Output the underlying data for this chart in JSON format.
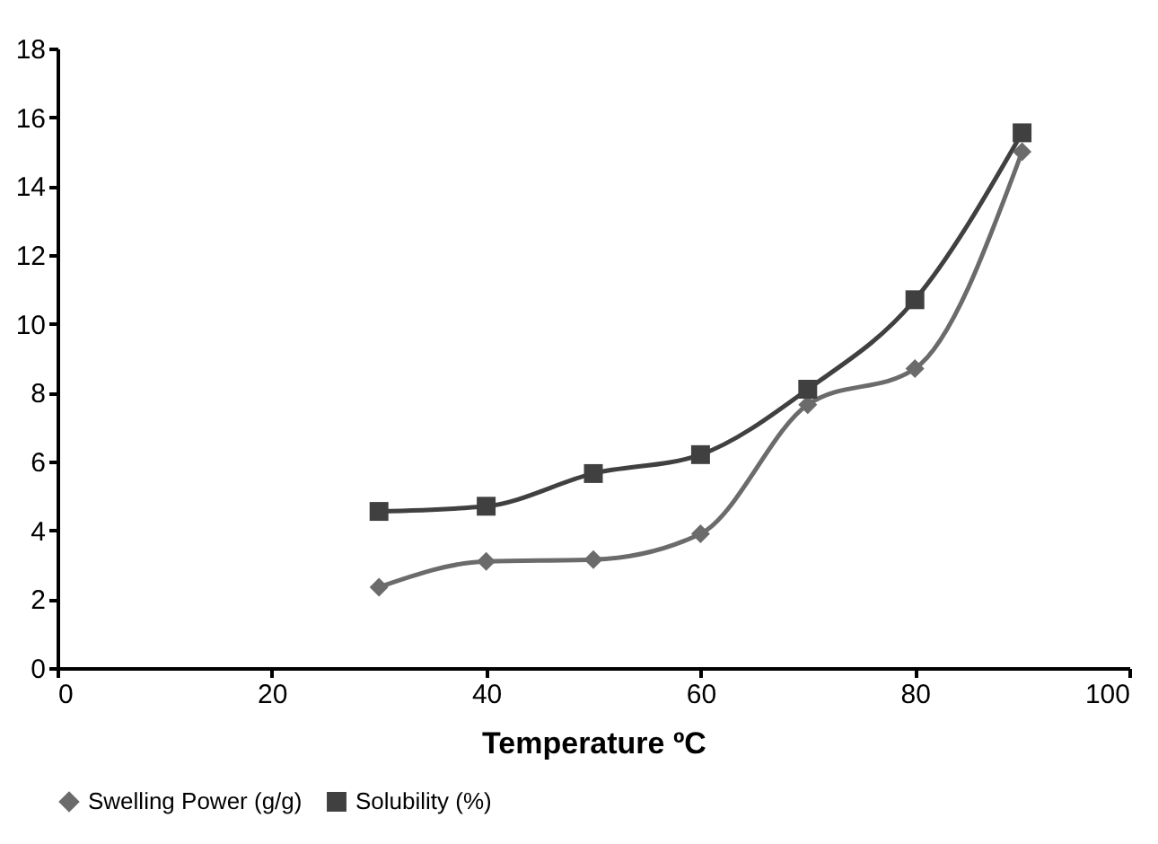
{
  "chart_data": {
    "type": "line",
    "xlabel": "Temperature ºC",
    "x": [
      30,
      40,
      50,
      60,
      70,
      80,
      90
    ],
    "series": [
      {
        "name": "Swelling Power (g/g)",
        "color": "#6b6b6b",
        "marker": "diamond",
        "values": [
          2.35,
          3.1,
          3.15,
          3.9,
          7.65,
          8.7,
          15.0
        ]
      },
      {
        "name": "Solubility (%)",
        "color": "#404040",
        "marker": "square",
        "values": [
          4.55,
          4.7,
          5.65,
          6.2,
          8.1,
          10.7,
          15.55
        ]
      }
    ],
    "xlim": [
      0,
      100
    ],
    "xticks": [
      0,
      20,
      40,
      60,
      80,
      100
    ],
    "ylim": [
      0,
      18
    ],
    "yticks": [
      0,
      2,
      4,
      6,
      8,
      10,
      12,
      14,
      16,
      18
    ],
    "grid": false,
    "legend": "bottom",
    "line_style": "solid"
  }
}
